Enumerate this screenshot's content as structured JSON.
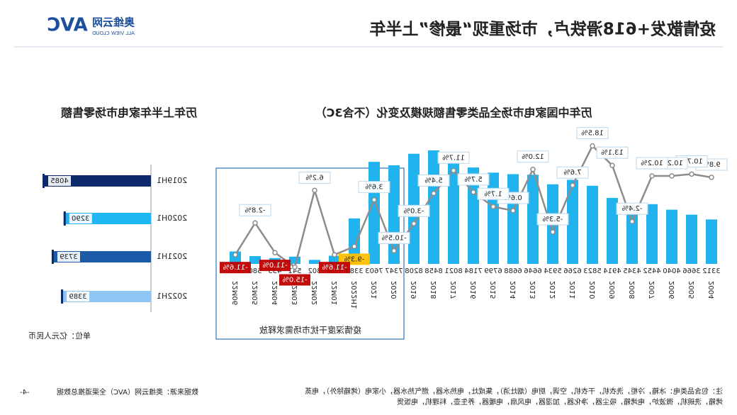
{
  "header": {
    "title": "疫情散发+618滑铁卢，市场重现“最惨”上半年",
    "logo_mark": "AVC",
    "logo_cn": "奥维云网",
    "logo_en": "ALL VIEW CLOUD"
  },
  "chart_data": [
    {
      "type": "bar-line",
      "title": "历年中国家电市场全品类零售额规模及变化（不含3C）",
      "categories": [
        "2004",
        "2005",
        "2006",
        "2007",
        "2008",
        "2009",
        "2010",
        "2011",
        "2012",
        "2013",
        "2014",
        "2015",
        "2016",
        "2017",
        "2018",
        "2019",
        "2020",
        "2021",
        "2022H1",
        "22M01",
        "22M02",
        "22M03",
        "22M04",
        "22M05",
        "22M06"
      ],
      "series": [
        {
          "type": "bar",
          "color": "#21b3ee",
          "values": [
            3312,
            3666,
            4040,
            4452,
            4345,
            4914,
            5823,
            6266,
            5934,
            6646,
            6688,
            6799,
            7184,
            8021,
            8458,
            8208,
            7347,
            7603,
            3389,
            608,
            302,
            541,
            433,
            580,
            925
          ]
        },
        {
          "type": "line",
          "axis": "y2",
          "color": "#8c8c8c",
          "values": [
            9.8,
            10.7,
            10.2,
            10.2,
            -2.4,
            13.1,
            18.5,
            7.6,
            -5.3,
            12.0,
            0.6,
            1.7,
            5.7,
            11.7,
            5.4,
            -3.0,
            -10.5,
            3.6,
            -9.3,
            -11.6,
            6.2,
            -15.0,
            -11.0,
            -2.8,
            -11.6
          ],
          "value_labels": [
            "9.8%",
            "10.7%",
            "10.2%",
            "10.2%",
            "-2.4%",
            "13.1%",
            "18.5%",
            "7.6%",
            "-5.3%",
            "12.0%",
            "0.6%",
            "1.7%",
            "5.7%",
            "11.7%",
            "5.4%",
            "-3.0%",
            "-10.5%",
            "3.6%",
            "-9.3%",
            "-11.6%",
            "6.2%",
            "-15.0%",
            "-11.0%",
            "-2.8%",
            "-11.6%"
          ],
          "label_colors": [
            null,
            null,
            null,
            null,
            null,
            null,
            null,
            null,
            null,
            null,
            null,
            null,
            null,
            null,
            null,
            null,
            null,
            null,
            "#ffc000",
            "#c00000",
            null,
            "#c00000",
            "#c00000",
            null,
            "#c00000"
          ]
        }
      ],
      "annotation": "疫情深度干扰市场需求释放"
    },
    {
      "type": "hbar",
      "title": "历年上半年家电市场零售额",
      "categories": [
        "2019H1",
        "2020H1",
        "2021H1",
        "2022H1"
      ],
      "values": [
        4085,
        3290,
        3739,
        3389
      ],
      "colors": [
        "#0d2a6b",
        "#1fb6f2",
        "#1d5ba8",
        "#8fc5f5"
      ],
      "unit": "单位：亿元人民币"
    }
  ],
  "footer": {
    "notes": [
      "注：包含品类电：冰箱，冷柜，洗衣机，干衣机，空调，厨电（烟灶消），集成灶，电热水器，燃气热水器，小家电（烤箱除外），电蒸",
      "烤箱，洗碗机，微波炉，电烤箱，吸尘器，净化器，加湿器，电风扇，电暖器，养生壶，料理机，电饭煲"
    ],
    "source": "数据来源：奥维云网（AVC）全渠道推总数据",
    "page": "-4-"
  }
}
